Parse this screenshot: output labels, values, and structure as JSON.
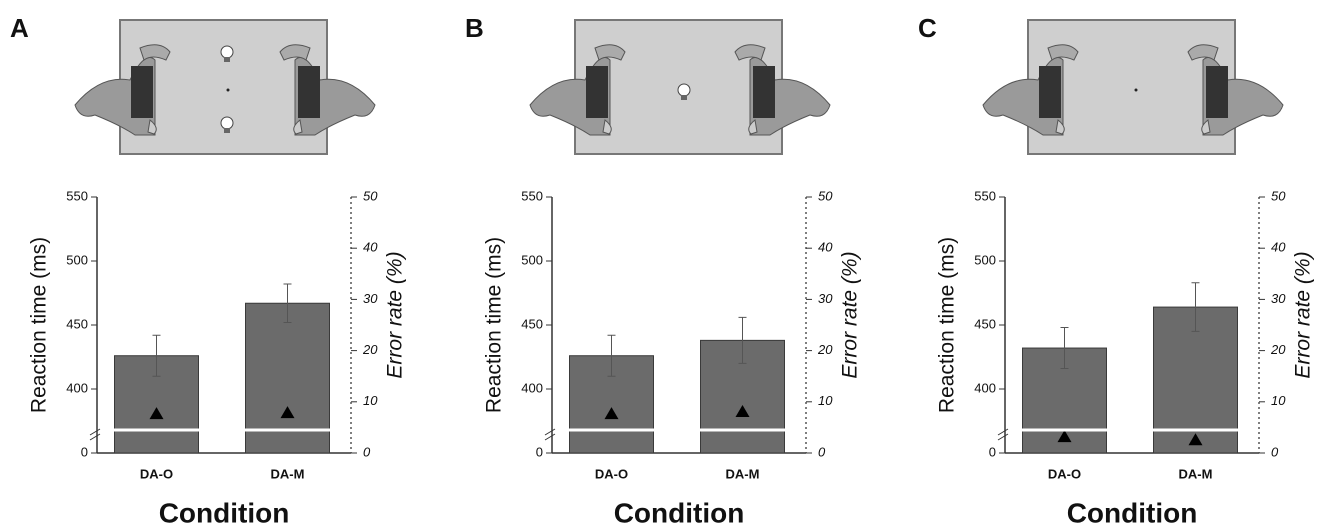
{
  "chart_data": [
    {
      "type": "bar",
      "panel": "A",
      "categories": [
        "DA-O",
        "DA-M"
      ],
      "xlabel": "Condition",
      "ylabel": "Reaction time (ms)",
      "y2label": "Error rate (%)",
      "ylim": [
        0,
        550
      ],
      "ybreak": [
        0,
        350
      ],
      "yticks": [
        0,
        400,
        450,
        500,
        550
      ],
      "y2lim": [
        0,
        50
      ],
      "y2ticks": [
        0,
        10,
        20,
        30,
        40,
        50
      ],
      "series": [
        {
          "color": "#6b6b6b",
          "values": [
            426,
            467
          ],
          "errors": [
            16,
            15
          ]
        },
        {
          "marker": "triangle",
          "axis": "y2",
          "color": "#000000",
          "values": [
            7.6,
            7.8
          ]
        }
      ]
    },
    {
      "type": "bar",
      "panel": "B",
      "categories": [
        "DA-O",
        "DA-M"
      ],
      "xlabel": "Condition",
      "ylabel": "Reaction time (ms)",
      "y2label": "Error rate (%)",
      "ylim": [
        0,
        550
      ],
      "ybreak": [
        0,
        350
      ],
      "yticks": [
        0,
        400,
        450,
        500,
        550
      ],
      "y2lim": [
        0,
        50
      ],
      "y2ticks": [
        0,
        10,
        20,
        30,
        40,
        50
      ],
      "series": [
        {
          "color": "#6b6b6b",
          "values": [
            426,
            438
          ],
          "errors": [
            16,
            18
          ]
        },
        {
          "marker": "triangle",
          "axis": "y2",
          "color": "#000000",
          "values": [
            7.6,
            8.0
          ]
        }
      ]
    },
    {
      "type": "bar",
      "panel": "C",
      "categories": [
        "DA-O",
        "DA-M"
      ],
      "xlabel": "Condition",
      "ylabel": "Reaction time (ms)",
      "y2label": "Error rate (%)",
      "ylim": [
        0,
        550
      ],
      "ybreak": [
        0,
        350
      ],
      "yticks": [
        0,
        400,
        450,
        500,
        550
      ],
      "y2lim": [
        0,
        50
      ],
      "y2ticks": [
        0,
        10,
        20,
        30,
        40,
        50
      ],
      "series": [
        {
          "color": "#6b6b6b",
          "values": [
            432,
            464
          ],
          "errors": [
            16,
            19
          ]
        },
        {
          "marker": "triangle",
          "axis": "y2",
          "color": "#000000",
          "values": [
            3.1,
            2.5
          ]
        }
      ]
    }
  ]
}
